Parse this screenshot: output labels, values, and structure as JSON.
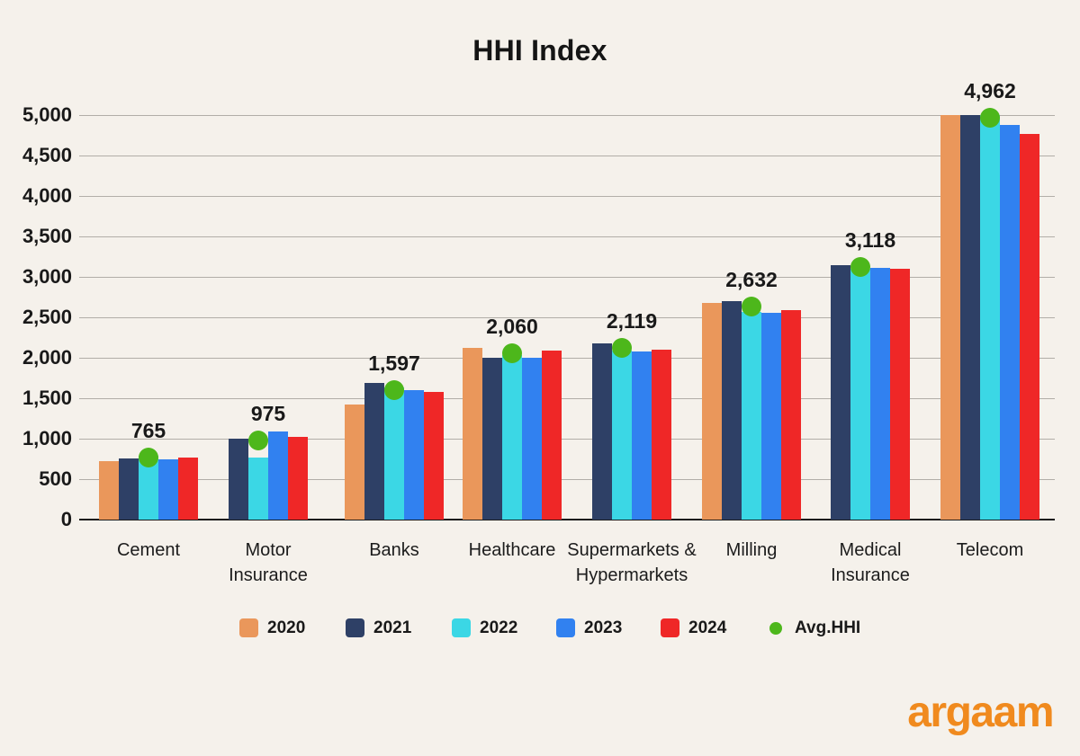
{
  "title": "HHI Index",
  "brand": {
    "logo_text": "argaam",
    "color": "#f08a1e"
  },
  "colors": {
    "background": "#f5f1eb",
    "grid": "#b2aea8",
    "axis": "#1b1b1b",
    "text": "#191919",
    "avg_dot": "#4db71b"
  },
  "chart_data": {
    "type": "bar",
    "title": "HHI Index",
    "xlabel": "",
    "ylabel": "",
    "ylim": [
      0,
      5000
    ],
    "ytick_step": 500,
    "ytick_labels": [
      "0",
      "500",
      "1,000",
      "1,500",
      "2,000",
      "2,500",
      "3,000",
      "3,500",
      "4,000",
      "4,500",
      "5,000"
    ],
    "grid": true,
    "legend_position": "bottom",
    "categories": [
      {
        "id": "cement",
        "label_lines": [
          "Cement"
        ]
      },
      {
        "id": "motor-insurance",
        "label_lines": [
          "Motor",
          "Insurance"
        ]
      },
      {
        "id": "banks",
        "label_lines": [
          "Banks"
        ]
      },
      {
        "id": "healthcare",
        "label_lines": [
          "Healthcare"
        ]
      },
      {
        "id": "supermarkets-hypermarkets",
        "label_lines": [
          "Supermarkets &",
          "Hypermarkets"
        ]
      },
      {
        "id": "milling",
        "label_lines": [
          "Milling"
        ]
      },
      {
        "id": "medical-insurance",
        "label_lines": [
          "Medical",
          "Insurance"
        ]
      },
      {
        "id": "telecom",
        "label_lines": [
          "Telecom"
        ]
      }
    ],
    "series": [
      {
        "name": "2020",
        "color": "#ea975b",
        "values": [
          720,
          null,
          1420,
          2120,
          null,
          2680,
          null,
          5005
        ]
      },
      {
        "name": "2021",
        "color": "#2e4066",
        "values": [
          760,
          1000,
          1685,
          2000,
          2180,
          2705,
          3140,
          4995
        ]
      },
      {
        "name": "2022",
        "color": "#3bd7e5",
        "values": [
          785,
          770,
          1630,
          2030,
          2085,
          2565,
          3095,
          5005
        ]
      },
      {
        "name": "2023",
        "color": "#3181f0",
        "values": [
          745,
          1085,
          1605,
          1995,
          2075,
          2555,
          3115,
          4880
        ]
      },
      {
        "name": "2024",
        "color": "#ef2727",
        "values": [
          765,
          1025,
          1580,
          2090,
          2100,
          2590,
          3105,
          4770
        ]
      }
    ],
    "avg_series": {
      "name": "Avg.HHI",
      "color": "#4db71b",
      "values": [
        765,
        975,
        1597,
        2060,
        2119,
        2632,
        3118,
        4962
      ]
    },
    "data_labels": [
      "765",
      "975",
      "1,597",
      "2,060",
      "2,119",
      "2,632",
      "3,118",
      "4,962"
    ]
  },
  "legend": {
    "items": [
      {
        "label": "2020",
        "color": "#ea975b",
        "shape": "square"
      },
      {
        "label": "2021",
        "color": "#2e4066",
        "shape": "square"
      },
      {
        "label": "2022",
        "color": "#3bd7e5",
        "shape": "square"
      },
      {
        "label": "2023",
        "color": "#3181f0",
        "shape": "square"
      },
      {
        "label": "2024",
        "color": "#ef2727",
        "shape": "square"
      },
      {
        "label": "Avg.HHI",
        "color": "#4db71b",
        "shape": "circle"
      }
    ]
  }
}
